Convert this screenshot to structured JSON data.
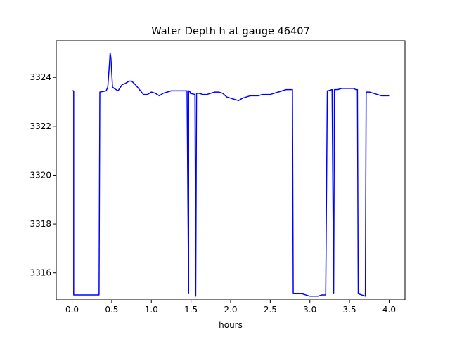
{
  "chart_data": {
    "type": "line",
    "title": "Water Depth h at gauge 46407",
    "xlabel": "hours",
    "ylabel": "",
    "xlim": [
      -0.2,
      4.2
    ],
    "ylim": [
      3314.9,
      3325.5
    ],
    "x_ticks": [
      0.0,
      0.5,
      1.0,
      1.5,
      2.0,
      2.5,
      3.0,
      3.5,
      4.0
    ],
    "x_tick_labels": [
      "0.0",
      "0.5",
      "1.0",
      "1.5",
      "2.0",
      "2.5",
      "3.0",
      "3.5",
      "4.0"
    ],
    "y_ticks": [
      3316,
      3318,
      3320,
      3322,
      3324
    ],
    "y_tick_labels": [
      "3316",
      "3318",
      "3320",
      "3322",
      "3324"
    ],
    "grid": false,
    "legend": "none",
    "series": [
      {
        "color": "#0000ff",
        "x": [
          0.0,
          0.02,
          0.02,
          0.34,
          0.35,
          0.43,
          0.45,
          0.47,
          0.48,
          0.49,
          0.51,
          0.53,
          0.58,
          0.63,
          0.67,
          0.72,
          0.75,
          0.8,
          0.85,
          0.9,
          0.95,
          1.0,
          1.05,
          1.1,
          1.15,
          1.2,
          1.25,
          1.3,
          1.35,
          1.4,
          1.45,
          1.47,
          1.47,
          1.49,
          1.49,
          1.55,
          1.56,
          1.57,
          1.58,
          1.6,
          1.65,
          1.7,
          1.75,
          1.8,
          1.85,
          1.9,
          1.95,
          2.0,
          2.05,
          2.1,
          2.15,
          2.2,
          2.25,
          2.3,
          2.35,
          2.4,
          2.45,
          2.5,
          2.55,
          2.6,
          2.65,
          2.7,
          2.75,
          2.78,
          2.79,
          2.85,
          2.9,
          2.95,
          3.0,
          3.05,
          3.1,
          3.15,
          3.2,
          3.22,
          3.23,
          3.28,
          3.3,
          3.31,
          3.32,
          3.35,
          3.4,
          3.45,
          3.5,
          3.55,
          3.58,
          3.6,
          3.61,
          3.7,
          3.71,
          3.75,
          3.8,
          3.85,
          3.9,
          3.95,
          4.0
        ],
        "y": [
          3323.45,
          3323.45,
          3315.1,
          3315.1,
          3323.4,
          3323.45,
          3323.6,
          3324.5,
          3325.0,
          3324.8,
          3323.6,
          3323.55,
          3323.45,
          3323.7,
          3323.75,
          3323.85,
          3323.85,
          3323.7,
          3323.5,
          3323.3,
          3323.3,
          3323.4,
          3323.35,
          3323.25,
          3323.35,
          3323.4,
          3323.45,
          3323.45,
          3323.45,
          3323.45,
          3323.45,
          3315.15,
          3323.45,
          3323.4,
          3323.35,
          3323.3,
          3315.05,
          3323.35,
          3323.35,
          3323.35,
          3323.3,
          3323.3,
          3323.35,
          3323.4,
          3323.4,
          3323.35,
          3323.2,
          3323.15,
          3323.1,
          3323.05,
          3323.15,
          3323.2,
          3323.25,
          3323.25,
          3323.25,
          3323.3,
          3323.3,
          3323.3,
          3323.35,
          3323.4,
          3323.45,
          3323.5,
          3323.5,
          3323.5,
          3315.15,
          3315.15,
          3315.15,
          3315.1,
          3315.05,
          3315.05,
          3315.05,
          3315.1,
          3315.1,
          3323.45,
          3323.45,
          3323.5,
          3315.15,
          3323.5,
          3323.5,
          3323.5,
          3323.55,
          3323.55,
          3323.55,
          3323.55,
          3323.5,
          3323.5,
          3315.15,
          3315.05,
          3323.4,
          3323.4,
          3323.35,
          3323.3,
          3323.25,
          3323.25,
          3323.25
        ]
      }
    ]
  }
}
